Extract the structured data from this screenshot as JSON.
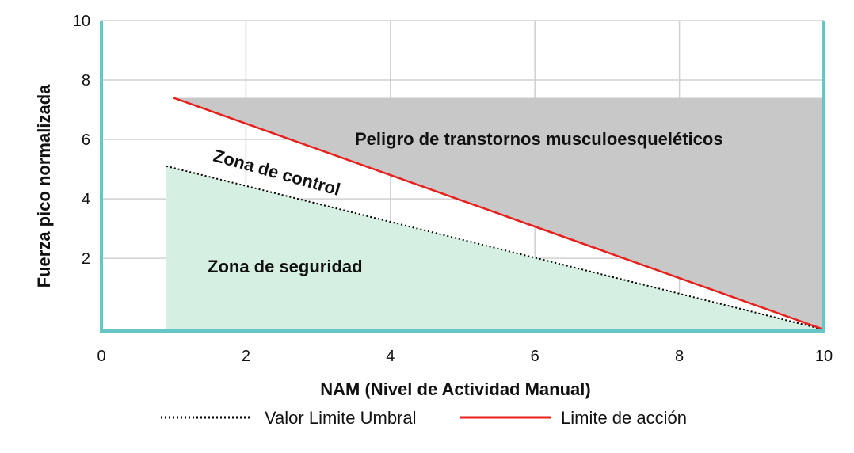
{
  "chart_data": {
    "type": "line",
    "xlabel": "NAM (Nivel de Actividad Manual)",
    "ylabel": "Fuerza pico normalizada",
    "xlim": [
      0,
      10
    ],
    "ylim": [
      -0.45,
      10
    ],
    "x_ticks": [
      "0",
      "2",
      "4",
      "6",
      "8",
      "10"
    ],
    "y_ticks": [
      "2",
      "4",
      "6",
      "8",
      "10"
    ],
    "grid": true,
    "legend_placement": "bottom",
    "series": [
      {
        "name": "Valor Limite Umbral",
        "style": "dotted",
        "color": "#000000",
        "x": [
          0.9,
          10
        ],
        "y": [
          5.1,
          -0.4
        ]
      },
      {
        "name": "Limite de acción",
        "style": "solid",
        "color": "#e8201c",
        "x": [
          1,
          10
        ],
        "y": [
          7.4,
          -0.4
        ]
      }
    ],
    "regions": [
      {
        "label": "Peligro de transtornos musculoesqueléticos",
        "color": "#c8c8c8"
      },
      {
        "label": "Zona de control",
        "color": "#ffffff"
      },
      {
        "label": "Zona de seguridad",
        "color": "#d5f0e3"
      }
    ],
    "colors": {
      "axis": "#66c5c5",
      "grid": "#d0d0d0"
    }
  }
}
